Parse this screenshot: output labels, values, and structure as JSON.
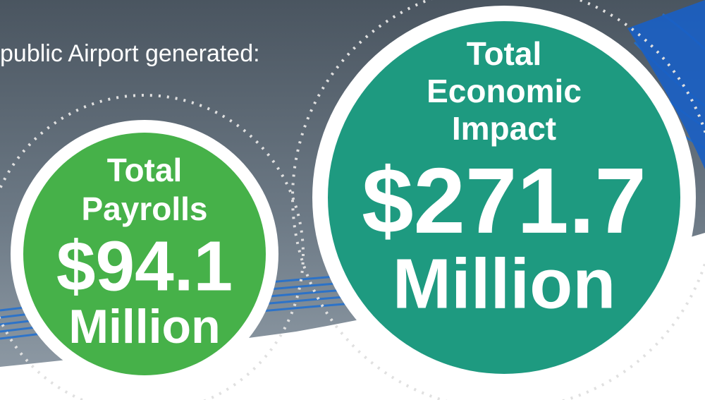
{
  "header": {
    "text": "public Airport generated:"
  },
  "circles": [
    {
      "lines": [
        "Total",
        "Payrolls"
      ],
      "amount": "$94.1",
      "unit": "Million"
    },
    {
      "lines": [
        "Total",
        "Economic",
        "Impact"
      ],
      "amount": "$271.7",
      "unit": "Million"
    }
  ]
}
